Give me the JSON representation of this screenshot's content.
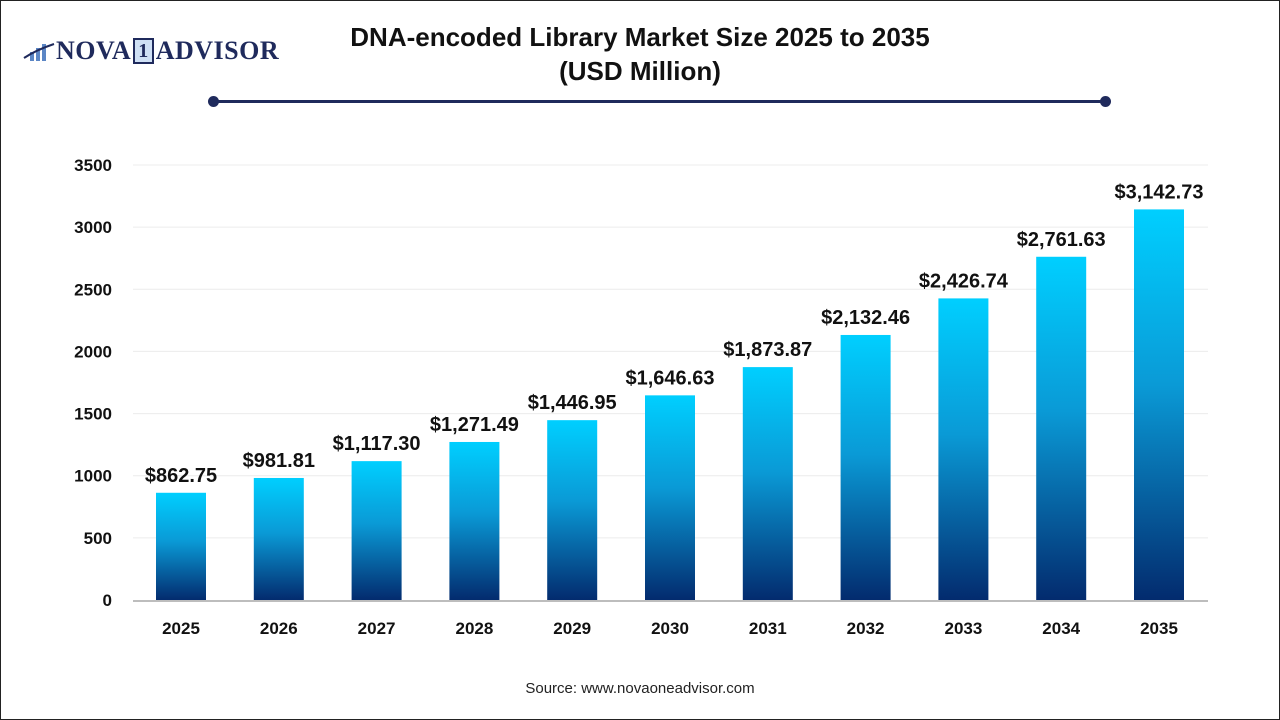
{
  "logo": {
    "text_left": "NOVA",
    "text_one": "1",
    "text_right": "ADVISOR"
  },
  "title_line1": "DNA-encoded Library Market Size 2025 to 2035",
  "title_line2": "(USD Million)",
  "source": "Source: www.novaoneadvisor.com",
  "colors": {
    "bar_top": "#00cfff",
    "bar_bottom": "#032b6e",
    "accent": "#1f2a5c"
  },
  "chart_data": {
    "type": "bar",
    "title": "DNA-encoded Library Market Size 2025 to 2035 (USD Million)",
    "categories": [
      "2025",
      "2026",
      "2027",
      "2028",
      "2029",
      "2030",
      "2031",
      "2032",
      "2033",
      "2034",
      "2035"
    ],
    "values": [
      862.75,
      981.81,
      1117.3,
      1271.49,
      1446.95,
      1646.63,
      1873.87,
      2132.46,
      2426.74,
      2761.63,
      3142.73
    ],
    "labels": [
      "$862.75",
      "$981.81",
      "$1,117.30",
      "$1,271.49",
      "$1,446.95",
      "$1,646.63",
      "$1,873.87",
      "$2,132.46",
      "$2,426.74",
      "$2,761.63",
      "$3,142.73"
    ],
    "yticks": [
      0,
      500,
      1000,
      1500,
      2000,
      2500,
      3000,
      3500
    ],
    "ylim": [
      0,
      3500
    ],
    "grid": true,
    "legend": "none"
  }
}
